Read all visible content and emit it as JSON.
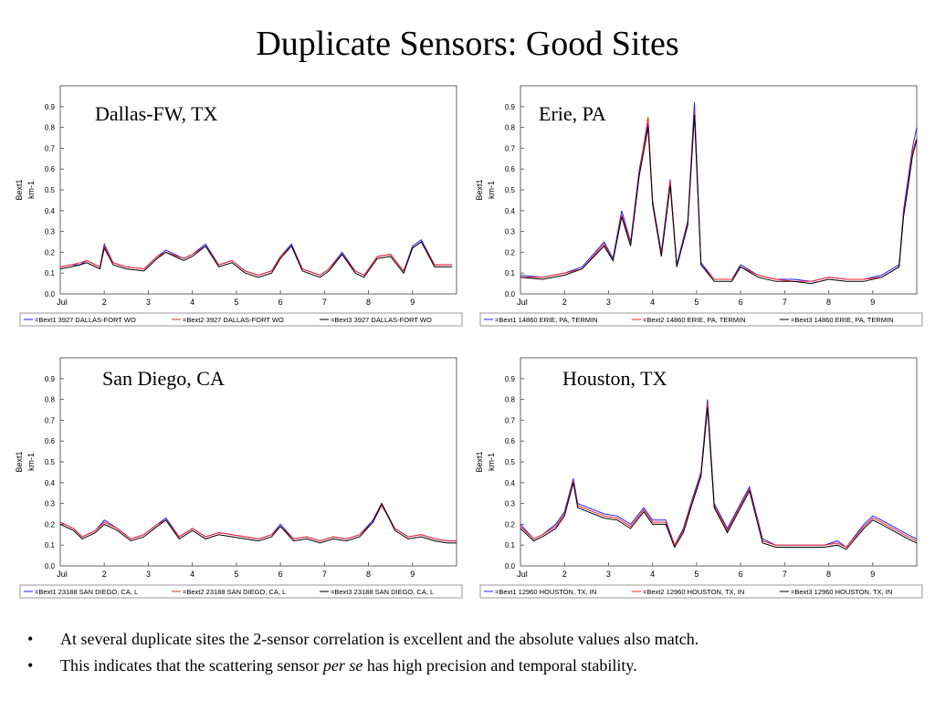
{
  "title": "Duplicate Sensors: Good Sites",
  "bullets": [
    {
      "before": "At several duplicate sites the 2-sensor correlation is excellent and the absolute values also match.",
      "italic": "",
      "after": ""
    },
    {
      "before": "This indicates that the scattering sensor ",
      "italic": "per se",
      "after": " has high precision and temporal stability."
    }
  ],
  "colors": {
    "bext1": "#2020ff",
    "bext2": "#ff2020",
    "bext3": "#000000"
  },
  "chart_data": [
    {
      "type": "line",
      "title": "Dallas-FW, TX",
      "ylabel": "Bext1 km-1",
      "xlim": [
        1,
        10
      ],
      "ylim": [
        0,
        1
      ],
      "x_ticks": [
        "Jul",
        "2",
        "3",
        "4",
        "5",
        "6",
        "7",
        "8",
        "9"
      ],
      "y_ticks": [
        "0.0",
        "0.1",
        "0.2",
        "0.3",
        "0.4",
        "0.5",
        "0.6",
        "0.7",
        "0.8",
        "0.9"
      ],
      "legend": [
        "=Bext1 3927 DALLAS-FORT WO",
        "=Bext2 3927 DALLAS-FORT WO",
        "=Bext3 3927 DALLAS-FORT WO"
      ],
      "series": [
        {
          "name": "Bext1",
          "color": "#2020ff",
          "x": [
            1.0,
            1.25,
            1.45,
            1.6,
            1.9,
            2.0,
            2.2,
            2.5,
            2.9,
            3.2,
            3.4,
            3.8,
            4.0,
            4.3,
            4.6,
            4.9,
            5.2,
            5.5,
            5.8,
            6.0,
            6.25,
            6.5,
            6.9,
            7.1,
            7.4,
            7.7,
            7.9,
            8.2,
            8.5,
            8.8,
            9.0,
            9.2,
            9.5,
            9.9
          ],
          "y": [
            0.13,
            0.14,
            0.14,
            0.16,
            0.13,
            0.24,
            0.15,
            0.13,
            0.12,
            0.18,
            0.21,
            0.17,
            0.19,
            0.24,
            0.14,
            0.16,
            0.11,
            0.09,
            0.11,
            0.18,
            0.24,
            0.12,
            0.09,
            0.12,
            0.2,
            0.11,
            0.09,
            0.18,
            0.19,
            0.11,
            0.23,
            0.26,
            0.14,
            0.14
          ]
        },
        {
          "name": "Bext2",
          "color": "#ff2020",
          "x": [
            1.0,
            1.25,
            1.45,
            1.6,
            1.9,
            2.0,
            2.2,
            2.5,
            2.9,
            3.2,
            3.4,
            3.8,
            4.0,
            4.3,
            4.6,
            4.9,
            5.2,
            5.5,
            5.8,
            6.0,
            6.25,
            6.5,
            6.9,
            7.1,
            7.4,
            7.7,
            7.9,
            8.2,
            8.5,
            8.8,
            9.0,
            9.2,
            9.5,
            9.9
          ],
          "y": [
            0.13,
            0.14,
            0.15,
            0.16,
            0.13,
            0.23,
            0.15,
            0.13,
            0.12,
            0.18,
            0.2,
            0.17,
            0.19,
            0.23,
            0.14,
            0.16,
            0.11,
            0.09,
            0.11,
            0.18,
            0.23,
            0.12,
            0.09,
            0.12,
            0.19,
            0.11,
            0.09,
            0.18,
            0.19,
            0.11,
            0.22,
            0.25,
            0.14,
            0.14
          ]
        },
        {
          "name": "Bext3",
          "color": "#000000",
          "x": [
            1.0,
            1.25,
            1.45,
            1.6,
            1.9,
            2.0,
            2.2,
            2.5,
            2.9,
            3.2,
            3.4,
            3.8,
            4.0,
            4.3,
            4.6,
            4.9,
            5.2,
            5.5,
            5.8,
            6.0,
            6.25,
            6.5,
            6.9,
            7.1,
            7.4,
            7.7,
            7.9,
            8.2,
            8.5,
            8.8,
            9.0,
            9.2,
            9.5,
            9.9
          ],
          "y": [
            0.12,
            0.13,
            0.14,
            0.15,
            0.12,
            0.22,
            0.14,
            0.12,
            0.11,
            0.17,
            0.2,
            0.16,
            0.18,
            0.23,
            0.13,
            0.15,
            0.1,
            0.08,
            0.1,
            0.17,
            0.23,
            0.11,
            0.08,
            0.11,
            0.19,
            0.1,
            0.08,
            0.17,
            0.18,
            0.1,
            0.22,
            0.25,
            0.13,
            0.13
          ]
        }
      ]
    },
    {
      "type": "line",
      "title": "Erie, PA",
      "ylabel": "Bext1 km-1",
      "xlim": [
        1,
        10
      ],
      "ylim": [
        0,
        1
      ],
      "x_ticks": [
        "Jul",
        "2",
        "3",
        "4",
        "5",
        "6",
        "7",
        "8",
        "9"
      ],
      "y_ticks": [
        "0.0",
        "0.1",
        "0.2",
        "0.3",
        "0.4",
        "0.5",
        "0.6",
        "0.7",
        "0.8",
        "0.9"
      ],
      "legend": [
        "=Bext1 14860 ERIE, PA, TERMIN",
        "=Bext2 14860 ERIE, PA, TERMIN",
        "=Bext3 14860 ERIE, PA, TERMIN"
      ],
      "series": [
        {
          "name": "Bext1",
          "color": "#2020ff",
          "x": [
            1.0,
            1.5,
            2.0,
            2.4,
            2.9,
            3.1,
            3.3,
            3.5,
            3.7,
            3.9,
            4.0,
            4.2,
            4.4,
            4.55,
            4.8,
            4.95,
            5.1,
            5.4,
            5.8,
            6.0,
            6.4,
            6.8,
            7.2,
            7.6,
            8.0,
            8.4,
            8.8,
            9.2,
            9.6,
            9.7,
            9.8,
            9.9,
            10.0
          ],
          "y": [
            0.09,
            0.08,
            0.1,
            0.13,
            0.25,
            0.17,
            0.4,
            0.25,
            0.6,
            0.82,
            0.45,
            0.2,
            0.55,
            0.14,
            0.35,
            0.92,
            0.15,
            0.07,
            0.07,
            0.14,
            0.09,
            0.07,
            0.07,
            0.06,
            0.08,
            0.07,
            0.07,
            0.09,
            0.14,
            0.4,
            0.55,
            0.7,
            0.8
          ]
        },
        {
          "name": "Bext2",
          "color": "#ff2020",
          "x": [
            1.0,
            1.5,
            2.0,
            2.4,
            2.9,
            3.1,
            3.3,
            3.5,
            3.7,
            3.9,
            4.0,
            4.2,
            4.4,
            4.55,
            4.8,
            4.95,
            5.1,
            5.4,
            5.8,
            6.0,
            6.4,
            6.8,
            7.2,
            7.6,
            8.0,
            8.4,
            8.8,
            9.2,
            9.6,
            9.7,
            9.8,
            9.9,
            10.0
          ],
          "y": [
            0.08,
            0.08,
            0.1,
            0.12,
            0.24,
            0.16,
            0.38,
            0.24,
            0.58,
            0.85,
            0.44,
            0.19,
            0.54,
            0.13,
            0.34,
            0.88,
            0.14,
            0.07,
            0.07,
            0.13,
            0.09,
            0.07,
            0.06,
            0.06,
            0.08,
            0.07,
            0.07,
            0.08,
            0.13,
            0.38,
            0.52,
            0.68,
            0.75
          ]
        },
        {
          "name": "Bext3",
          "color": "#000000",
          "x": [
            1.0,
            1.5,
            2.0,
            2.4,
            2.9,
            3.1,
            3.3,
            3.5,
            3.7,
            3.9,
            4.0,
            4.2,
            4.4,
            4.55,
            4.8,
            4.95,
            5.1,
            5.4,
            5.8,
            6.0,
            6.4,
            6.8,
            7.2,
            7.6,
            8.0,
            8.4,
            8.8,
            9.2,
            9.6,
            9.7,
            9.8,
            9.9,
            10.0
          ],
          "y": [
            0.08,
            0.07,
            0.09,
            0.12,
            0.23,
            0.16,
            0.37,
            0.23,
            0.57,
            0.8,
            0.43,
            0.18,
            0.52,
            0.13,
            0.33,
            0.86,
            0.14,
            0.06,
            0.06,
            0.13,
            0.08,
            0.06,
            0.06,
            0.05,
            0.07,
            0.06,
            0.06,
            0.08,
            0.13,
            0.37,
            0.51,
            0.66,
            0.74
          ]
        }
      ]
    },
    {
      "type": "line",
      "title": "San Diego, CA",
      "ylabel": "Bext1 km-1",
      "xlim": [
        1,
        10
      ],
      "ylim": [
        0,
        1
      ],
      "x_ticks": [
        "Jul",
        "2",
        "3",
        "4",
        "5",
        "6",
        "7",
        "8",
        "9"
      ],
      "y_ticks": [
        "0.0",
        "0.1",
        "0.2",
        "0.3",
        "0.4",
        "0.5",
        "0.6",
        "0.7",
        "0.8",
        "0.9"
      ],
      "legend": [
        "=Bext1 23188 SAN DIEGO, CA, L",
        "=Bext2 23188 SAN DIEGO, CA, L",
        "=Bext3 23188 SAN DIEGO, CA, L"
      ],
      "series": [
        {
          "name": "Bext1",
          "color": "#2020ff",
          "x": [
            1.0,
            1.3,
            1.5,
            1.8,
            2.0,
            2.3,
            2.6,
            2.9,
            3.2,
            3.4,
            3.7,
            4.0,
            4.3,
            4.6,
            4.9,
            5.2,
            5.5,
            5.8,
            6.0,
            6.3,
            6.6,
            6.9,
            7.2,
            7.5,
            7.8,
            8.1,
            8.3,
            8.6,
            8.9,
            9.2,
            9.5,
            9.8,
            10.0
          ],
          "y": [
            0.21,
            0.18,
            0.14,
            0.17,
            0.22,
            0.18,
            0.13,
            0.15,
            0.2,
            0.23,
            0.14,
            0.18,
            0.14,
            0.16,
            0.15,
            0.14,
            0.13,
            0.15,
            0.2,
            0.13,
            0.14,
            0.12,
            0.14,
            0.13,
            0.15,
            0.22,
            0.3,
            0.18,
            0.14,
            0.15,
            0.13,
            0.12,
            0.12
          ]
        },
        {
          "name": "Bext2",
          "color": "#ff2020",
          "x": [
            1.0,
            1.3,
            1.5,
            1.8,
            2.0,
            2.3,
            2.6,
            2.9,
            3.2,
            3.4,
            3.7,
            4.0,
            4.3,
            4.6,
            4.9,
            5.2,
            5.5,
            5.8,
            6.0,
            6.3,
            6.6,
            6.9,
            7.2,
            7.5,
            7.8,
            8.1,
            8.3,
            8.6,
            8.9,
            9.2,
            9.5,
            9.8,
            10.0
          ],
          "y": [
            0.21,
            0.18,
            0.14,
            0.17,
            0.21,
            0.18,
            0.13,
            0.15,
            0.2,
            0.22,
            0.14,
            0.18,
            0.14,
            0.16,
            0.15,
            0.14,
            0.13,
            0.15,
            0.19,
            0.13,
            0.14,
            0.12,
            0.14,
            0.13,
            0.15,
            0.21,
            0.29,
            0.18,
            0.14,
            0.15,
            0.13,
            0.12,
            0.12
          ]
        },
        {
          "name": "Bext3",
          "color": "#000000",
          "x": [
            1.0,
            1.3,
            1.5,
            1.8,
            2.0,
            2.3,
            2.6,
            2.9,
            3.2,
            3.4,
            3.7,
            4.0,
            4.3,
            4.6,
            4.9,
            5.2,
            5.5,
            5.8,
            6.0,
            6.3,
            6.6,
            6.9,
            7.2,
            7.5,
            7.8,
            8.1,
            8.3,
            8.6,
            8.9,
            9.2,
            9.5,
            9.8,
            10.0
          ],
          "y": [
            0.2,
            0.17,
            0.13,
            0.16,
            0.2,
            0.17,
            0.12,
            0.14,
            0.19,
            0.22,
            0.13,
            0.17,
            0.13,
            0.15,
            0.14,
            0.13,
            0.12,
            0.14,
            0.19,
            0.12,
            0.13,
            0.11,
            0.13,
            0.12,
            0.14,
            0.21,
            0.3,
            0.17,
            0.13,
            0.14,
            0.12,
            0.11,
            0.11
          ]
        }
      ]
    },
    {
      "type": "line",
      "title": "Houston, TX",
      "ylabel": "Bext1 km-1",
      "xlim": [
        1,
        10
      ],
      "ylim": [
        0,
        1
      ],
      "x_ticks": [
        "Jul",
        "2",
        "3",
        "4",
        "5",
        "6",
        "7",
        "8",
        "9"
      ],
      "y_ticks": [
        "0.0",
        "0.1",
        "0.2",
        "0.3",
        "0.4",
        "0.5",
        "0.6",
        "0.7",
        "0.8",
        "0.9"
      ],
      "legend": [
        "=Bext1 12960 HOUSTON, TX, IN",
        "=Bext2 12960 HOUSTON, TX, IN",
        "=Bext3 12960 HOUSTON, TX, IN"
      ],
      "series": [
        {
          "name": "Bext1",
          "color": "#2020ff",
          "x": [
            1.0,
            1.3,
            1.5,
            1.8,
            2.0,
            2.2,
            2.3,
            2.9,
            3.2,
            3.5,
            3.8,
            4.0,
            4.3,
            4.5,
            4.7,
            4.9,
            5.1,
            5.25,
            5.4,
            5.7,
            6.0,
            6.2,
            6.5,
            6.8,
            7.9,
            8.2,
            8.4,
            8.8,
            9.0,
            9.2,
            9.8,
            10.0
          ],
          "y": [
            0.2,
            0.13,
            0.15,
            0.2,
            0.26,
            0.42,
            0.3,
            0.25,
            0.24,
            0.2,
            0.28,
            0.22,
            0.22,
            0.1,
            0.18,
            0.32,
            0.45,
            0.8,
            0.3,
            0.18,
            0.3,
            0.38,
            0.13,
            0.1,
            0.1,
            0.12,
            0.09,
            0.2,
            0.24,
            0.22,
            0.15,
            0.13
          ]
        },
        {
          "name": "Bext2",
          "color": "#ff2020",
          "x": [
            1.0,
            1.3,
            1.5,
            1.8,
            2.0,
            2.2,
            2.3,
            2.9,
            3.2,
            3.5,
            3.8,
            4.0,
            4.3,
            4.5,
            4.7,
            4.9,
            5.1,
            5.25,
            5.4,
            5.7,
            6.0,
            6.2,
            6.5,
            6.8,
            7.9,
            8.2,
            8.4,
            8.8,
            9.0,
            9.2,
            9.8,
            10.0
          ],
          "y": [
            0.19,
            0.13,
            0.15,
            0.19,
            0.25,
            0.41,
            0.29,
            0.24,
            0.23,
            0.19,
            0.27,
            0.21,
            0.21,
            0.1,
            0.17,
            0.31,
            0.44,
            0.78,
            0.29,
            0.17,
            0.29,
            0.37,
            0.12,
            0.1,
            0.1,
            0.11,
            0.09,
            0.19,
            0.23,
            0.21,
            0.14,
            0.12
          ]
        },
        {
          "name": "Bext3",
          "color": "#000000",
          "x": [
            1.0,
            1.3,
            1.5,
            1.8,
            2.0,
            2.2,
            2.3,
            2.9,
            3.2,
            3.5,
            3.8,
            4.0,
            4.3,
            4.5,
            4.7,
            4.9,
            5.1,
            5.25,
            5.4,
            5.7,
            6.0,
            6.2,
            6.5,
            6.8,
            7.9,
            8.2,
            8.4,
            8.8,
            9.0,
            9.2,
            9.8,
            10.0
          ],
          "y": [
            0.18,
            0.12,
            0.14,
            0.18,
            0.24,
            0.4,
            0.28,
            0.23,
            0.22,
            0.18,
            0.26,
            0.2,
            0.2,
            0.09,
            0.16,
            0.3,
            0.43,
            0.76,
            0.28,
            0.16,
            0.28,
            0.36,
            0.11,
            0.09,
            0.09,
            0.1,
            0.08,
            0.18,
            0.22,
            0.2,
            0.13,
            0.11
          ]
        }
      ]
    }
  ]
}
